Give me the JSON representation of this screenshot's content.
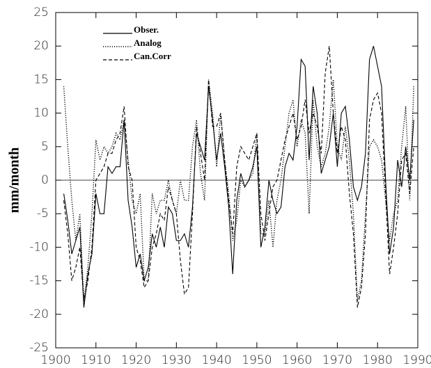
{
  "chart_data": {
    "type": "line",
    "ylabel": "mm/month",
    "x": [
      1902,
      1903,
      1904,
      1905,
      1906,
      1907,
      1908,
      1909,
      1910,
      1911,
      1912,
      1913,
      1914,
      1915,
      1916,
      1917,
      1918,
      1919,
      1920,
      1921,
      1922,
      1923,
      1924,
      1925,
      1926,
      1927,
      1928,
      1929,
      1930,
      1931,
      1932,
      1933,
      1934,
      1935,
      1936,
      1937,
      1938,
      1939,
      1940,
      1941,
      1942,
      1943,
      1944,
      1945,
      1946,
      1947,
      1948,
      1949,
      1950,
      1951,
      1952,
      1953,
      1954,
      1955,
      1956,
      1957,
      1958,
      1959,
      1960,
      1961,
      1962,
      1963,
      1964,
      1965,
      1966,
      1967,
      1968,
      1969,
      1970,
      1971,
      1972,
      1973,
      1974,
      1975,
      1976,
      1977,
      1978,
      1979,
      1980,
      1981,
      1982,
      1983,
      1984,
      1985,
      1986,
      1987,
      1988,
      1989
    ],
    "series": [
      {
        "name": "Obser.",
        "color": "#000000",
        "dash": "solid",
        "values": [
          -2,
          -6,
          -11,
          -9,
          -7,
          -19,
          -14,
          -11,
          -2,
          -5,
          -5,
          2,
          1,
          2,
          2,
          9,
          -3,
          -7,
          -13,
          -11,
          -15,
          -13,
          -8,
          -10,
          -7,
          -10,
          -4,
          -5,
          -9,
          -9,
          -8,
          -10,
          -4,
          7,
          5,
          3,
          14,
          9,
          3,
          7,
          2,
          -4,
          -14,
          -3,
          1,
          -1,
          0,
          2,
          5,
          -10,
          -7,
          0,
          -3,
          -5,
          -4,
          2,
          4,
          3,
          8,
          18,
          17,
          3,
          14,
          10,
          1,
          3,
          5,
          10,
          2,
          10,
          11,
          6,
          -1,
          -3,
          -1,
          4,
          18,
          20,
          17,
          14,
          0,
          -11,
          -7,
          3,
          -1,
          5,
          0,
          9
        ]
      },
      {
        "name": "Analog",
        "color": "#000000",
        "dash": "dotted",
        "values": [
          14,
          5,
          -3,
          -9,
          -5,
          -18,
          -13,
          -5,
          6,
          3,
          5,
          4,
          5,
          7,
          6,
          9,
          3,
          -3,
          -5,
          -2,
          -15,
          -15,
          -2,
          -5,
          -3,
          -3,
          0,
          -3,
          -5,
          0,
          -3,
          -3,
          5,
          9,
          1,
          -3,
          15,
          10,
          2,
          10,
          3,
          -2,
          -9,
          -6,
          0,
          -1,
          0,
          1,
          7,
          -8,
          -8,
          -3,
          -10,
          -3,
          0,
          5,
          10,
          12,
          5,
          9,
          7,
          -5,
          12,
          5,
          2,
          4,
          8,
          15,
          5,
          3,
          8,
          3,
          -5,
          -18,
          -15,
          -5,
          5,
          6,
          5,
          3,
          -3,
          -9,
          -5,
          -3,
          5,
          11,
          -3,
          14
        ]
      },
      {
        "name": "Can.Corr",
        "color": "#000000",
        "dash": "dashed",
        "values": [
          -3,
          -8,
          -15,
          -13,
          -10,
          -18,
          -15,
          -10,
          0,
          1,
          2,
          4,
          4,
          6,
          7,
          11,
          2,
          0,
          -10,
          -12,
          -16,
          -15,
          -10,
          -8,
          -5,
          -6,
          -1,
          -3,
          -5,
          -12,
          -17,
          -16,
          -5,
          8,
          4,
          0,
          15,
          8,
          8,
          10,
          3,
          -3,
          -8,
          2,
          5,
          4,
          3,
          5,
          7,
          -5,
          -9,
          -5,
          -1,
          0,
          3,
          6,
          8,
          10,
          6,
          8,
          12,
          7,
          10,
          8,
          4,
          16,
          20,
          10,
          4,
          8,
          6,
          -2,
          -8,
          -19,
          -16,
          -8,
          9,
          12,
          13,
          10,
          -2,
          -14,
          -10,
          -5,
          3,
          4,
          -2,
          5
        ]
      }
    ],
    "xlim": [
      1900,
      1990
    ],
    "xticks": [
      1900,
      1910,
      1920,
      1930,
      1940,
      1950,
      1960,
      1970,
      1980,
      1990
    ],
    "ylim": [
      -25,
      25
    ],
    "yticks": [
      -25,
      -20,
      -15,
      -10,
      -5,
      0,
      5,
      10,
      15,
      20,
      25
    ],
    "zero_line": true,
    "legend": "upper left"
  }
}
